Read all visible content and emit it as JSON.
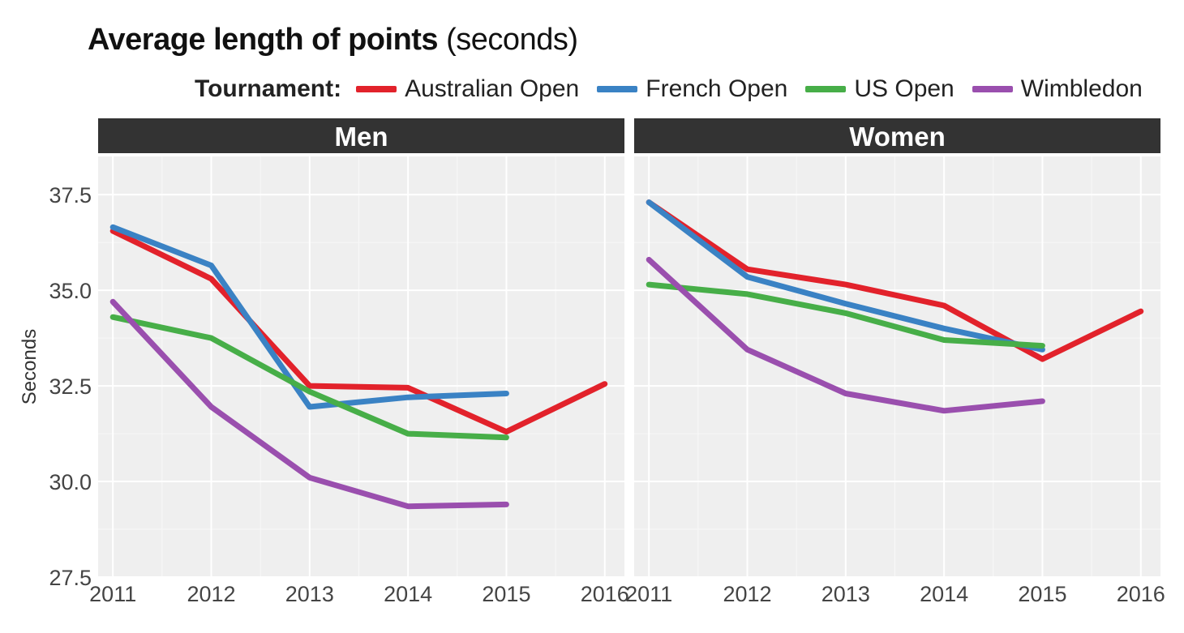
{
  "title": {
    "main": "Average length of points",
    "unit": "(seconds)"
  },
  "legend": {
    "label": "Tournament:",
    "entries": [
      {
        "name": "Australian Open",
        "color": "#e2222b"
      },
      {
        "name": "French Open",
        "color": "#3a82c4"
      },
      {
        "name": "US Open",
        "color": "#47ae48"
      },
      {
        "name": "Wimbledon",
        "color": "#9a4fae"
      }
    ]
  },
  "chart_data": {
    "type": "line",
    "title": "Average length of points (seconds)",
    "ylabel": "Seconds",
    "xlabel": "",
    "ylim": [
      27.5,
      38.5
    ],
    "xlim": [
      2010.85,
      2016.2
    ],
    "x_ticks": [
      2011,
      2012,
      2013,
      2014,
      2015,
      2016
    ],
    "y_ticks": [
      27.5,
      30.0,
      32.5,
      35.0,
      37.5
    ],
    "y_tick_labels": [
      "27.5",
      "30.0",
      "32.5",
      "35.0",
      "37.5"
    ],
    "panels": [
      {
        "name": "Men",
        "series": [
          {
            "name": "Australian Open",
            "color": "#e2222b",
            "x": [
              2011,
              2012,
              2013,
              2014,
              2015,
              2016
            ],
            "values": [
              36.55,
              35.3,
              32.5,
              32.45,
              31.3,
              32.55
            ]
          },
          {
            "name": "French Open",
            "color": "#3a82c4",
            "x": [
              2011,
              2012,
              2013,
              2014,
              2015
            ],
            "values": [
              36.65,
              35.65,
              31.95,
              32.2,
              32.3
            ]
          },
          {
            "name": "US Open",
            "color": "#47ae48",
            "x": [
              2011,
              2012,
              2013,
              2014,
              2015
            ],
            "values": [
              34.3,
              33.75,
              32.35,
              31.25,
              31.15
            ]
          },
          {
            "name": "Wimbledon",
            "color": "#9a4fae",
            "x": [
              2011,
              2012,
              2013,
              2014,
              2015
            ],
            "values": [
              34.7,
              31.95,
              30.1,
              29.35,
              29.4
            ]
          }
        ]
      },
      {
        "name": "Women",
        "series": [
          {
            "name": "Australian Open",
            "color": "#e2222b",
            "x": [
              2011,
              2012,
              2013,
              2014,
              2015,
              2016
            ],
            "values": [
              37.3,
              35.55,
              35.15,
              34.6,
              33.2,
              34.45
            ]
          },
          {
            "name": "French Open",
            "color": "#3a82c4",
            "x": [
              2011,
              2012,
              2013,
              2014,
              2015
            ],
            "values": [
              37.3,
              35.35,
              34.65,
              34.0,
              33.45
            ]
          },
          {
            "name": "US Open",
            "color": "#47ae48",
            "x": [
              2011,
              2012,
              2013,
              2014,
              2015
            ],
            "values": [
              35.15,
              34.9,
              34.4,
              33.7,
              33.55
            ]
          },
          {
            "name": "Wimbledon",
            "color": "#9a4fae",
            "x": [
              2011,
              2012,
              2013,
              2014,
              2015
            ],
            "values": [
              35.8,
              33.45,
              32.3,
              31.85,
              32.1
            ]
          }
        ]
      }
    ]
  }
}
